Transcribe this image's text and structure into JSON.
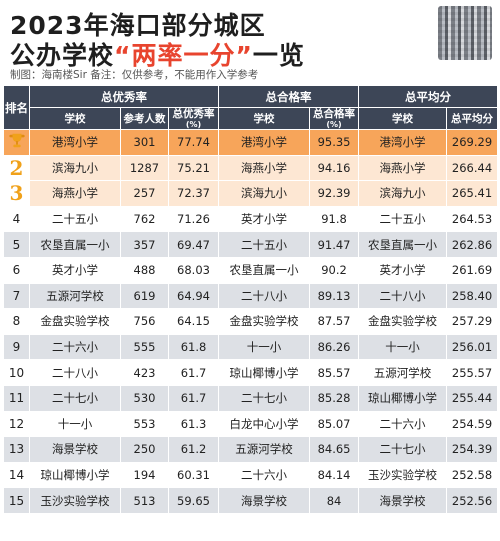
{
  "header": {
    "title_line1": "2023年海口部分城区",
    "title_line2_a": "公办学校",
    "title_line2_b": "“两率一分”",
    "title_line2_c": "一览",
    "subtitle": "制图：海南楼Sir 备注：仅供参考，不能用作入学参考"
  },
  "table": {
    "group_headers": {
      "rank": "排名",
      "excellent": "总优秀率",
      "pass": "总合格率",
      "avg": "总平均分"
    },
    "sub_headers": {
      "school": "学校",
      "count": "参考人数",
      "excellent_rate": "总优秀率",
      "pass_rate": "总合格率",
      "avg_score": "总平均分",
      "pct_unit": "(%)"
    },
    "rows": [
      {
        "rank": "1",
        "s1": "港湾小学",
        "count": "301",
        "rate1": "77.74",
        "s2": "港湾小学",
        "rate2": "95.35",
        "s3": "港湾小学",
        "avg": "269.29"
      },
      {
        "rank": "2",
        "s1": "滨海九小",
        "count": "1287",
        "rate1": "75.21",
        "s2": "海燕小学",
        "rate2": "94.16",
        "s3": "海燕小学",
        "avg": "266.44"
      },
      {
        "rank": "3",
        "s1": "海燕小学",
        "count": "257",
        "rate1": "72.37",
        "s2": "滨海九小",
        "rate2": "92.39",
        "s3": "滨海九小",
        "avg": "265.41"
      },
      {
        "rank": "4",
        "s1": "二十五小",
        "count": "762",
        "rate1": "71.26",
        "s2": "英才小学",
        "rate2": "91.8",
        "s3": "二十五小",
        "avg": "264.53"
      },
      {
        "rank": "5",
        "s1": "农垦直属一小",
        "count": "357",
        "rate1": "69.47",
        "s2": "二十五小",
        "rate2": "91.47",
        "s3": "农垦直属一小",
        "avg": "262.86"
      },
      {
        "rank": "6",
        "s1": "英才小学",
        "count": "488",
        "rate1": "68.03",
        "s2": "农垦直属一小",
        "rate2": "90.2",
        "s3": "英才小学",
        "avg": "261.69"
      },
      {
        "rank": "7",
        "s1": "五源河学校",
        "count": "619",
        "rate1": "64.94",
        "s2": "二十八小",
        "rate2": "89.13",
        "s3": "二十八小",
        "avg": "258.40"
      },
      {
        "rank": "8",
        "s1": "金盘实验学校",
        "count": "756",
        "rate1": "64.15",
        "s2": "金盘实验学校",
        "rate2": "87.57",
        "s3": "金盘实验学校",
        "avg": "257.29"
      },
      {
        "rank": "9",
        "s1": "二十六小",
        "count": "555",
        "rate1": "61.8",
        "s2": "十一小",
        "rate2": "86.26",
        "s3": "十一小",
        "avg": "256.01"
      },
      {
        "rank": "10",
        "s1": "二十八小",
        "count": "423",
        "rate1": "61.7",
        "s2": "琼山椰博小学",
        "rate2": "85.57",
        "s3": "五源河学校",
        "avg": "255.57"
      },
      {
        "rank": "11",
        "s1": "二十七小",
        "count": "530",
        "rate1": "61.7",
        "s2": "二十七小",
        "rate2": "85.28",
        "s3": "琼山椰博小学",
        "avg": "255.44"
      },
      {
        "rank": "12",
        "s1": "十一小",
        "count": "553",
        "rate1": "61.3",
        "s2": "白龙中心小学",
        "rate2": "85.07",
        "s3": "二十六小",
        "avg": "254.59"
      },
      {
        "rank": "13",
        "s1": "海景学校",
        "count": "250",
        "rate1": "61.2",
        "s2": "五源河学校",
        "rate2": "84.65",
        "s3": "二十七小",
        "avg": "254.39"
      },
      {
        "rank": "14",
        "s1": "琼山椰博小学",
        "count": "194",
        "rate1": "60.31",
        "s2": "二十六小",
        "rate2": "84.14",
        "s3": "玉沙实验学校",
        "avg": "252.58"
      },
      {
        "rank": "15",
        "s1": "玉沙实验学校",
        "count": "513",
        "rate1": "59.65",
        "s2": "海景学校",
        "rate2": "84",
        "s3": "海景学校",
        "avg": "252.56"
      }
    ]
  },
  "colors": {
    "header_bg": "#3d4657",
    "top1_row": "#f7a55a",
    "top23_row": "#fde7d3",
    "medal": "#f0a11a",
    "title_highlight": "#e8442e"
  }
}
